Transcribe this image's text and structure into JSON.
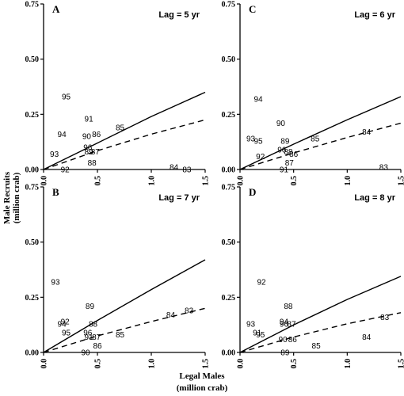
{
  "figure": {
    "ylabel_line1": "Male Recruits",
    "ylabel_line2": "(million crab)",
    "xlabel_line1": "Legal Males",
    "xlabel_line2": "(million crab)"
  },
  "chart_data": [
    {
      "type": "scatter",
      "panel": "A",
      "lag_label": "Lag = 5 yr",
      "xlim": [
        0,
        1.5
      ],
      "ylim": [
        0,
        0.75
      ],
      "x_ticks": [
        "0.0",
        "0.5",
        "1.0",
        "1.5"
      ],
      "y_ticks": [
        "0.00",
        "0.25",
        "0.50",
        "0.75"
      ],
      "points": [
        {
          "label": "95",
          "x": 0.21,
          "y": 0.33
        },
        {
          "label": "91",
          "x": 0.42,
          "y": 0.23
        },
        {
          "label": "94",
          "x": 0.17,
          "y": 0.16
        },
        {
          "label": "90",
          "x": 0.4,
          "y": 0.15
        },
        {
          "label": "86",
          "x": 0.49,
          "y": 0.16
        },
        {
          "label": "85",
          "x": 0.71,
          "y": 0.19
        },
        {
          "label": "96",
          "x": 0.41,
          "y": 0.1
        },
        {
          "label": "89",
          "x": 0.42,
          "y": 0.08
        },
        {
          "label": "87",
          "x": 0.48,
          "y": 0.08
        },
        {
          "label": "93",
          "x": 0.1,
          "y": 0.07
        },
        {
          "label": "88",
          "x": 0.45,
          "y": 0.03
        },
        {
          "label": "92",
          "x": 0.2,
          "y": 0.0
        },
        {
          "label": "84",
          "x": 1.21,
          "y": 0.01
        },
        {
          "label": "83",
          "x": 1.33,
          "y": 0.0
        }
      ],
      "lines": [
        {
          "style": "solid",
          "x": [
            0,
            0.5,
            1.0,
            1.5
          ],
          "y": [
            0,
            0.12,
            0.24,
            0.35
          ]
        },
        {
          "style": "dashed",
          "x": [
            0,
            0.5,
            1.0,
            1.5
          ],
          "y": [
            0,
            0.085,
            0.16,
            0.225
          ]
        }
      ]
    },
    {
      "type": "scatter",
      "panel": "C",
      "lag_label": "Lag =  6 yr",
      "xlim": [
        0,
        1.5
      ],
      "ylim": [
        0,
        0.75
      ],
      "x_ticks": [
        "0.0",
        "0.5",
        "1.0",
        "1.5"
      ],
      "y_ticks": [
        "0.00",
        "0.25",
        "0.50",
        "0.75"
      ],
      "points": [
        {
          "label": "94",
          "x": 0.17,
          "y": 0.32
        },
        {
          "label": "90",
          "x": 0.38,
          "y": 0.21
        },
        {
          "label": "93",
          "x": 0.1,
          "y": 0.14
        },
        {
          "label": "95",
          "x": 0.17,
          "y": 0.13
        },
        {
          "label": "89",
          "x": 0.42,
          "y": 0.13
        },
        {
          "label": "85",
          "x": 0.7,
          "y": 0.14
        },
        {
          "label": "84",
          "x": 1.18,
          "y": 0.17
        },
        {
          "label": "96",
          "x": 0.39,
          "y": 0.09
        },
        {
          "label": "92",
          "x": 0.19,
          "y": 0.06
        },
        {
          "label": "88",
          "x": 0.45,
          "y": 0.08
        },
        {
          "label": "86",
          "x": 0.5,
          "y": 0.07
        },
        {
          "label": "87",
          "x": 0.46,
          "y": 0.03
        },
        {
          "label": "91",
          "x": 0.41,
          "y": 0.0
        },
        {
          "label": "83",
          "x": 1.34,
          "y": 0.01
        }
      ],
      "lines": [
        {
          "style": "solid",
          "x": [
            0,
            0.5,
            1.0,
            1.5
          ],
          "y": [
            0,
            0.115,
            0.225,
            0.33
          ]
        },
        {
          "style": "dashed",
          "x": [
            0,
            0.5,
            1.0,
            1.5
          ],
          "y": [
            0,
            0.075,
            0.145,
            0.21
          ]
        }
      ]
    },
    {
      "type": "scatter",
      "panel": "B",
      "lag_label": "Lag = 7 yr",
      "xlim": [
        0,
        1.5
      ],
      "ylim": [
        0,
        0.75
      ],
      "x_ticks": [
        "0.0",
        "0.5",
        "1.0",
        "1.5"
      ],
      "y_ticks": [
        "0.00",
        "0.25",
        "0.50",
        "0.75"
      ],
      "points": [
        {
          "label": "93",
          "x": 0.11,
          "y": 0.32
        },
        {
          "label": "89",
          "x": 0.43,
          "y": 0.21
        },
        {
          "label": "92",
          "x": 0.2,
          "y": 0.14
        },
        {
          "label": "94",
          "x": 0.17,
          "y": 0.13
        },
        {
          "label": "88",
          "x": 0.46,
          "y": 0.13
        },
        {
          "label": "95",
          "x": 0.21,
          "y": 0.09
        },
        {
          "label": "96",
          "x": 0.41,
          "y": 0.09
        },
        {
          "label": "91",
          "x": 0.42,
          "y": 0.07
        },
        {
          "label": "87",
          "x": 0.49,
          "y": 0.07
        },
        {
          "label": "85",
          "x": 0.71,
          "y": 0.08
        },
        {
          "label": "86",
          "x": 0.5,
          "y": 0.03
        },
        {
          "label": "90",
          "x": 0.39,
          "y": 0.0
        },
        {
          "label": "84",
          "x": 1.18,
          "y": 0.17
        },
        {
          "label": "83",
          "x": 1.35,
          "y": 0.19
        }
      ],
      "lines": [
        {
          "style": "solid",
          "x": [
            0,
            0.5,
            1.0,
            1.5
          ],
          "y": [
            0,
            0.145,
            0.285,
            0.42
          ]
        },
        {
          "style": "dashed",
          "x": [
            0,
            0.5,
            1.0,
            1.5
          ],
          "y": [
            0,
            0.075,
            0.14,
            0.2
          ]
        }
      ]
    },
    {
      "type": "scatter",
      "panel": "D",
      "lag_label": "Lag = 8 yr",
      "xlim": [
        0,
        1.5
      ],
      "ylim": [
        0,
        0.75
      ],
      "x_ticks": [
        "0.0",
        "0.5",
        "1.0",
        "1.5"
      ],
      "y_ticks": [
        "0.00",
        "0.25",
        "0.50",
        "0.75"
      ],
      "points": [
        {
          "label": "92",
          "x": 0.2,
          "y": 0.32
        },
        {
          "label": "88",
          "x": 0.45,
          "y": 0.21
        },
        {
          "label": "93",
          "x": 0.1,
          "y": 0.13
        },
        {
          "label": "94",
          "x": 0.41,
          "y": 0.14
        },
        {
          "label": "96",
          "x": 0.41,
          "y": 0.13
        },
        {
          "label": "87",
          "x": 0.48,
          "y": 0.13
        },
        {
          "label": "83",
          "x": 1.35,
          "y": 0.16
        },
        {
          "label": "91",
          "x": 0.16,
          "y": 0.09
        },
        {
          "label": "95",
          "x": 0.19,
          "y": 0.08
        },
        {
          "label": "90",
          "x": 0.4,
          "y": 0.06
        },
        {
          "label": "86",
          "x": 0.49,
          "y": 0.06
        },
        {
          "label": "85",
          "x": 0.71,
          "y": 0.03
        },
        {
          "label": "84",
          "x": 1.18,
          "y": 0.07
        },
        {
          "label": "89",
          "x": 0.42,
          "y": 0.0
        }
      ],
      "lines": [
        {
          "style": "solid",
          "x": [
            0,
            0.5,
            1.0,
            1.5
          ],
          "y": [
            0,
            0.125,
            0.24,
            0.345
          ]
        },
        {
          "style": "dashed",
          "x": [
            0,
            0.5,
            1.0,
            1.5
          ],
          "y": [
            0,
            0.07,
            0.13,
            0.18
          ]
        }
      ]
    }
  ]
}
